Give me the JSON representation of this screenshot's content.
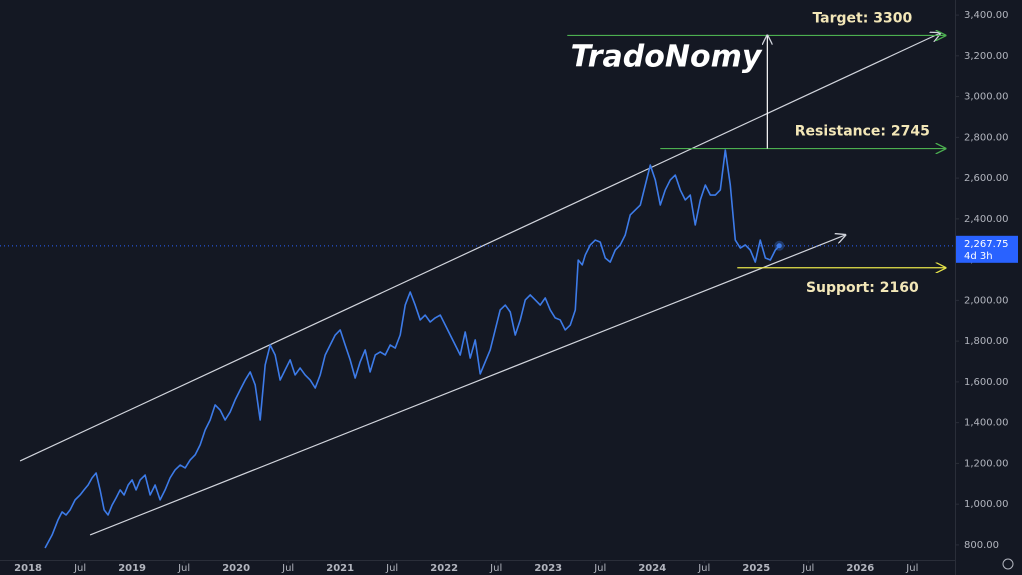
{
  "chart_data": {
    "type": "line",
    "watermark": "TradoNomy",
    "xlim": [
      2017.73,
      2026.91
    ],
    "ylim": [
      726,
      3474
    ],
    "grid": false,
    "xticks": [
      2018,
      {
        "value": 2018.5,
        "label": "Jul"
      },
      2019,
      {
        "value": 2019.5,
        "label": "Jul"
      },
      2020,
      {
        "value": 2020.5,
        "label": "Jul"
      },
      2021,
      {
        "value": 2021.5,
        "label": "Jul"
      },
      2022,
      {
        "value": 2022.5,
        "label": "Jul"
      },
      2023,
      {
        "value": 2023.5,
        "label": "Jul"
      },
      2024,
      {
        "value": 2024.5,
        "label": "Jul"
      },
      2025,
      {
        "value": 2025.5,
        "label": "Jul"
      },
      2026,
      {
        "value": 2026.5,
        "label": "Jul"
      }
    ],
    "yticks": [
      {
        "value": 800,
        "label": "800.00"
      },
      {
        "value": 1000,
        "label": "1,000.00"
      },
      {
        "value": 1200,
        "label": "1,200.00"
      },
      {
        "value": 1400,
        "label": "1,400.00"
      },
      {
        "value": 1600,
        "label": "1,600.00"
      },
      {
        "value": 1800,
        "label": "1,800.00"
      },
      {
        "value": 2000,
        "label": "2,000.00"
      },
      {
        "value": 2200,
        "label": "2,200.00"
      },
      {
        "value": 2400,
        "label": "2,400.00"
      },
      {
        "value": 2600,
        "label": "2,600.00"
      },
      {
        "value": 2800,
        "label": "2,800.00"
      },
      {
        "value": 3000,
        "label": "3,000.00"
      },
      {
        "value": 3200,
        "label": "3,200.00"
      },
      {
        "value": 3400,
        "label": "3,400.00"
      }
    ],
    "series": [
      {
        "color": "#3d7be8",
        "x": [
          2018.163,
          2018.231,
          2018.288,
          2018.327,
          2018.365,
          2018.404,
          2018.452,
          2018.5,
          2018.538,
          2018.577,
          2018.615,
          2018.654,
          2018.692,
          2018.731,
          2018.769,
          2018.808,
          2018.846,
          2018.885,
          2018.923,
          2018.962,
          2019.0,
          2019.038,
          2019.077,
          2019.125,
          2019.173,
          2019.221,
          2019.269,
          2019.317,
          2019.365,
          2019.413,
          2019.462,
          2019.51,
          2019.558,
          2019.606,
          2019.654,
          2019.702,
          2019.75,
          2019.798,
          2019.846,
          2019.894,
          2019.942,
          2019.99,
          2020.038,
          2020.087,
          2020.135,
          2020.183,
          2020.231,
          2020.279,
          2020.327,
          2020.375,
          2020.423,
          2020.471,
          2020.519,
          2020.567,
          2020.615,
          2020.663,
          2020.712,
          2020.76,
          2020.808,
          2020.856,
          2020.904,
          2020.952,
          2021.0,
          2021.048,
          2021.096,
          2021.144,
          2021.192,
          2021.24,
          2021.288,
          2021.337,
          2021.385,
          2021.433,
          2021.481,
          2021.529,
          2021.577,
          2021.625,
          2021.673,
          2021.721,
          2021.769,
          2021.817,
          2021.865,
          2021.913,
          2021.962,
          2022.01,
          2022.058,
          2022.106,
          2022.154,
          2022.202,
          2022.25,
          2022.298,
          2022.346,
          2022.394,
          2022.442,
          2022.49,
          2022.538,
          2022.587,
          2022.635,
          2022.683,
          2022.731,
          2022.779,
          2022.827,
          2022.875,
          2022.923,
          2022.971,
          2023.019,
          2023.067,
          2023.115,
          2023.163,
          2023.212,
          2023.26,
          2023.288,
          2023.327,
          2023.356,
          2023.404,
          2023.452,
          2023.5,
          2023.548,
          2023.596,
          2023.644,
          2023.692,
          2023.74,
          2023.788,
          2023.837,
          2023.885,
          2023.933,
          2023.981,
          2024.029,
          2024.077,
          2024.125,
          2024.173,
          2024.221,
          2024.269,
          2024.317,
          2024.365,
          2024.413,
          2024.462,
          2024.51,
          2024.558,
          2024.606,
          2024.654,
          2024.702,
          2024.75,
          2024.798,
          2024.846,
          2024.894,
          2024.942,
          2024.99,
          2025.038,
          2025.087,
          2025.135,
          2025.183,
          2025.221
        ],
        "values": [
          785,
          849,
          923,
          962,
          947,
          972,
          1021,
          1045,
          1070,
          1094,
          1129,
          1153,
          1070,
          972,
          947,
          996,
          1031,
          1070,
          1045,
          1094,
          1119,
          1070,
          1119,
          1143,
          1045,
          1094,
          1021,
          1070,
          1129,
          1168,
          1192,
          1178,
          1217,
          1242,
          1291,
          1364,
          1413,
          1487,
          1462,
          1413,
          1452,
          1511,
          1560,
          1609,
          1649,
          1585,
          1413,
          1683,
          1781,
          1732,
          1609,
          1659,
          1708,
          1634,
          1668,
          1634,
          1609,
          1570,
          1634,
          1732,
          1781,
          1830,
          1855,
          1781,
          1708,
          1619,
          1698,
          1757,
          1649,
          1732,
          1747,
          1732,
          1781,
          1766,
          1830,
          1977,
          2041,
          1977,
          1904,
          1928,
          1894,
          1914,
          1928,
          1879,
          1830,
          1781,
          1732,
          1845,
          1717,
          1806,
          1639,
          1698,
          1757,
          1855,
          1953,
          1977,
          1943,
          1830,
          1904,
          2002,
          2027,
          2002,
          1977,
          2012,
          1953,
          1914,
          1904,
          1855,
          1879,
          1953,
          2198,
          2174,
          2223,
          2272,
          2296,
          2286,
          2208,
          2188,
          2247,
          2272,
          2321,
          2419,
          2444,
          2468,
          2566,
          2664,
          2591,
          2468,
          2542,
          2591,
          2615,
          2542,
          2493,
          2517,
          2370,
          2493,
          2566,
          2517,
          2517,
          2542,
          2738,
          2566,
          2296,
          2257,
          2272,
          2247,
          2188,
          2296,
          2208,
          2198,
          2247,
          2268
        ]
      }
    ],
    "last_price": {
      "value": 2267.75,
      "label": "2,267.75",
      "color": "#2962ff"
    },
    "countdown": "4d 3h",
    "channel": {
      "color": "#d1d4dc",
      "lines": [
        {
          "x": [
            2017.923,
            2026.769
          ],
          "y": [
            1212,
            3312
          ]
        },
        {
          "x": [
            2018.596,
            2025.856
          ],
          "y": [
            849,
            2321
          ]
        }
      ]
    },
    "levels": [
      {
        "label": "Target: 3300",
        "value": 3300,
        "color": "#4caf50",
        "x": [
          2023.183,
          2026.817
        ],
        "label_position": "above"
      },
      {
        "label": "Resistance: 2745",
        "value": 2745,
        "color": "#4caf50",
        "x": [
          2024.077,
          2026.817
        ],
        "label_position": "above"
      },
      {
        "label": "Support: 2160",
        "value": 2160,
        "color": "#e6e34a",
        "x": [
          2024.817,
          2026.817
        ],
        "label_position": "below"
      }
    ],
    "projection": {
      "x": 2025.106,
      "from": 2745,
      "to": 3300,
      "color": "#ffffff"
    }
  }
}
